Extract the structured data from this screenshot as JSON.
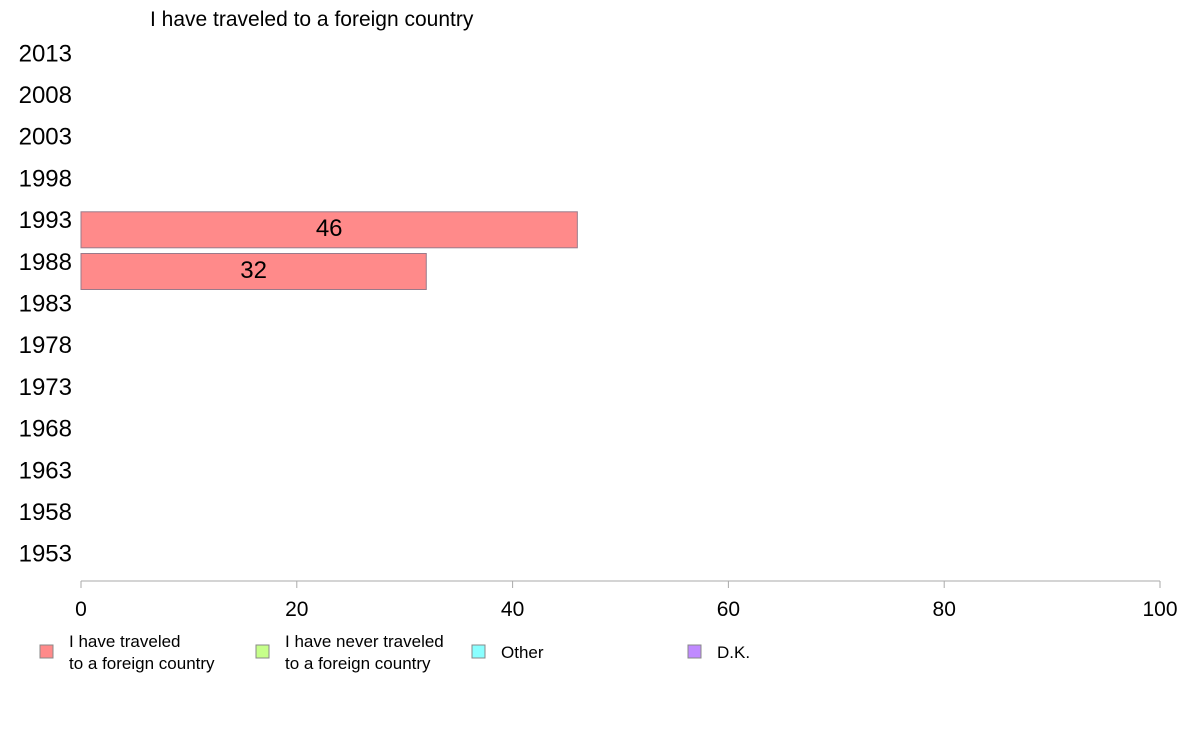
{
  "chart_data": {
    "type": "bar",
    "orientation": "horizontal",
    "title": "I have traveled to a foreign country",
    "categories": [
      "2013",
      "2008",
      "2003",
      "1998",
      "1993",
      "1988",
      "1983",
      "1978",
      "1973",
      "1968",
      "1963",
      "1958",
      "1953"
    ],
    "series": [
      {
        "name": "I have traveled to a foreign country",
        "color": "#ff8a8a",
        "values": [
          null,
          null,
          null,
          null,
          46,
          32,
          null,
          null,
          null,
          null,
          null,
          null,
          null
        ]
      }
    ],
    "xlim": [
      0,
      100
    ],
    "xticks": [
      "0",
      "20",
      "40",
      "60",
      "80",
      "100"
    ],
    "legend": {
      "placement": "bottom",
      "items": [
        {
          "lines": [
            "I have traveled",
            "to a foreign country"
          ],
          "color": "#ff8a8a"
        },
        {
          "lines": [
            "I have never traveled",
            "to a foreign country"
          ],
          "color": "#c6ff8a"
        },
        {
          "lines": [
            "Other"
          ],
          "color": "#8affff"
        },
        {
          "lines": [
            "D.K."
          ],
          "color": "#c08aff"
        }
      ]
    }
  }
}
